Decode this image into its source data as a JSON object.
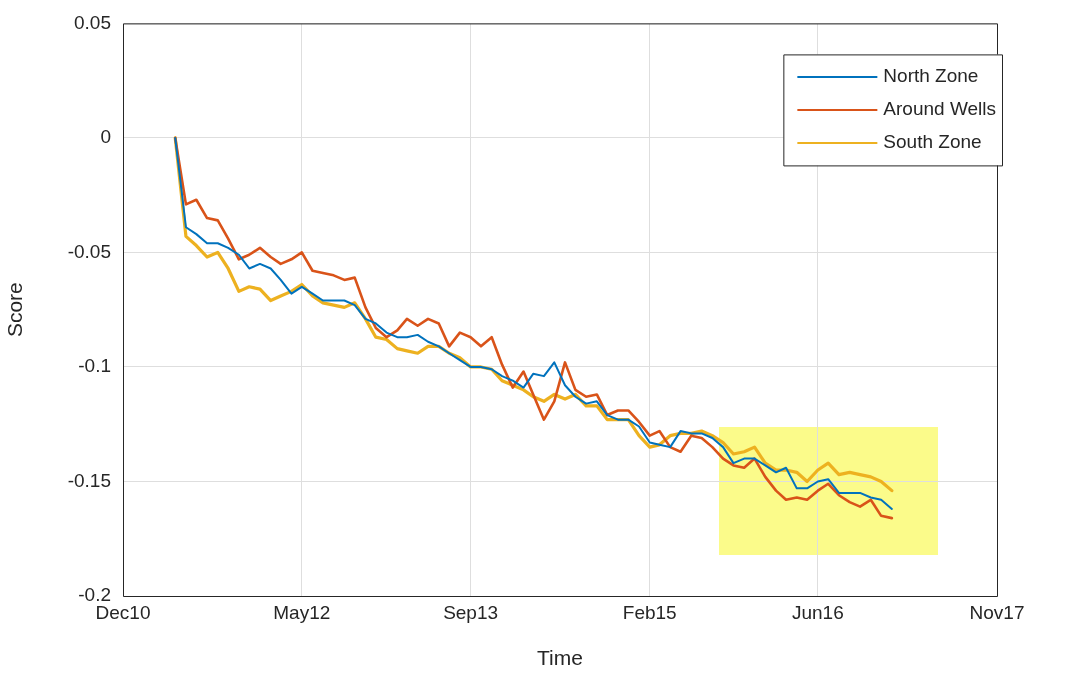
{
  "chart_data": {
    "type": "line",
    "xlabel": "Time",
    "ylabel": "Score",
    "x": [
      "2011-05",
      "2011-06",
      "2011-07",
      "2011-08",
      "2011-09",
      "2011-10",
      "2011-11",
      "2011-12",
      "2012-01",
      "2012-02",
      "2012-03",
      "2012-04",
      "2012-05",
      "2012-06",
      "2012-07",
      "2012-08",
      "2012-09",
      "2012-10",
      "2012-11",
      "2012-12",
      "2013-01",
      "2013-02",
      "2013-03",
      "2013-04",
      "2013-05",
      "2013-06",
      "2013-07",
      "2013-08",
      "2013-09",
      "2013-10",
      "2013-11",
      "2013-12",
      "2014-01",
      "2014-02",
      "2014-03",
      "2014-04",
      "2014-05",
      "2014-06",
      "2014-07",
      "2014-08",
      "2014-09",
      "2014-10",
      "2014-11",
      "2014-12",
      "2015-01",
      "2015-02",
      "2015-03",
      "2015-04",
      "2015-05",
      "2015-06",
      "2015-07",
      "2015-08",
      "2015-09",
      "2015-10",
      "2015-11",
      "2015-12",
      "2016-01",
      "2016-02",
      "2016-03",
      "2016-04",
      "2016-05",
      "2016-06",
      "2016-07",
      "2016-08",
      "2016-09",
      "2016-10",
      "2016-11",
      "2016-12",
      "2017-01"
    ],
    "series": [
      {
        "name": "North Zone",
        "color": "#0072bd",
        "values": [
          0,
          -0.039,
          -0.042,
          -0.046,
          -0.046,
          -0.048,
          -0.051,
          -0.057,
          -0.055,
          -0.057,
          -0.062,
          -0.068,
          -0.065,
          -0.068,
          -0.071,
          -0.071,
          -0.071,
          -0.073,
          -0.079,
          -0.081,
          -0.085,
          -0.087,
          -0.087,
          -0.086,
          -0.089,
          -0.091,
          -0.094,
          -0.097,
          -0.1,
          -0.1,
          -0.101,
          -0.104,
          -0.106,
          -0.109,
          -0.103,
          -0.104,
          -0.098,
          -0.108,
          -0.113,
          -0.116,
          -0.115,
          -0.121,
          -0.123,
          -0.123,
          -0.126,
          -0.133,
          -0.134,
          -0.135,
          -0.128,
          -0.129,
          -0.129,
          -0.131,
          -0.135,
          -0.142,
          -0.14,
          -0.14,
          -0.143,
          -0.146,
          -0.144,
          -0.153,
          -0.153,
          -0.15,
          -0.149,
          -0.155,
          -0.155,
          -0.155,
          -0.157,
          -0.158,
          -0.162
        ]
      },
      {
        "name": "Around Wells",
        "color": "#d95319",
        "values": [
          0,
          -0.029,
          -0.027,
          -0.035,
          -0.036,
          -0.044,
          -0.053,
          -0.051,
          -0.048,
          -0.052,
          -0.055,
          -0.053,
          -0.05,
          -0.058,
          -0.059,
          -0.06,
          -0.062,
          -0.061,
          -0.074,
          -0.083,
          -0.087,
          -0.084,
          -0.079,
          -0.082,
          -0.079,
          -0.081,
          -0.091,
          -0.085,
          -0.087,
          -0.091,
          -0.087,
          -0.099,
          -0.109,
          -0.102,
          -0.112,
          -0.123,
          -0.115,
          -0.098,
          -0.11,
          -0.113,
          -0.112,
          -0.121,
          -0.119,
          -0.119,
          -0.124,
          -0.13,
          -0.128,
          -0.135,
          -0.137,
          -0.13,
          -0.131,
          -0.135,
          -0.14,
          -0.143,
          -0.144,
          -0.14,
          -0.148,
          -0.154,
          -0.158,
          -0.157,
          -0.158,
          -0.154,
          -0.151,
          -0.156,
          -0.159,
          -0.161,
          -0.158,
          -0.165,
          -0.166
        ]
      },
      {
        "name": "South Zone",
        "color": "#edb120",
        "values": [
          0,
          -0.043,
          -0.047,
          -0.052,
          -0.05,
          -0.057,
          -0.067,
          -0.065,
          -0.066,
          -0.071,
          -0.069,
          -0.067,
          -0.064,
          -0.069,
          -0.072,
          -0.073,
          -0.074,
          -0.072,
          -0.079,
          -0.087,
          -0.088,
          -0.092,
          -0.093,
          -0.094,
          -0.091,
          -0.091,
          -0.094,
          -0.096,
          -0.1,
          -0.1,
          -0.101,
          -0.106,
          -0.108,
          -0.11,
          -0.113,
          -0.115,
          -0.112,
          -0.114,
          -0.112,
          -0.117,
          -0.117,
          -0.123,
          -0.123,
          -0.123,
          -0.13,
          -0.135,
          -0.134,
          -0.13,
          -0.129,
          -0.129,
          -0.128,
          -0.13,
          -0.133,
          -0.138,
          -0.137,
          -0.135,
          -0.142,
          -0.145,
          -0.145,
          -0.146,
          -0.15,
          -0.145,
          -0.142,
          -0.147,
          -0.146,
          -0.147,
          -0.148,
          -0.15,
          -0.154
        ]
      }
    ],
    "xlim": [
      "2010-12",
      "2017-11"
    ],
    "xticks": [
      {
        "value": "2010-12",
        "label": "Dec10"
      },
      {
        "value": "2012-05",
        "label": "May12"
      },
      {
        "value": "2013-09",
        "label": "Sep13"
      },
      {
        "value": "2015-02",
        "label": "Feb15"
      },
      {
        "value": "2016-06",
        "label": "Jun16"
      },
      {
        "value": "2017-11",
        "label": "Nov17"
      }
    ],
    "ylim": [
      -0.2,
      0.05
    ],
    "yticks": [
      -0.2,
      -0.15,
      -0.1,
      -0.05,
      0,
      0.05
    ],
    "grid": true,
    "legend": "top right",
    "marker": "none",
    "line_style": "solid"
  }
}
